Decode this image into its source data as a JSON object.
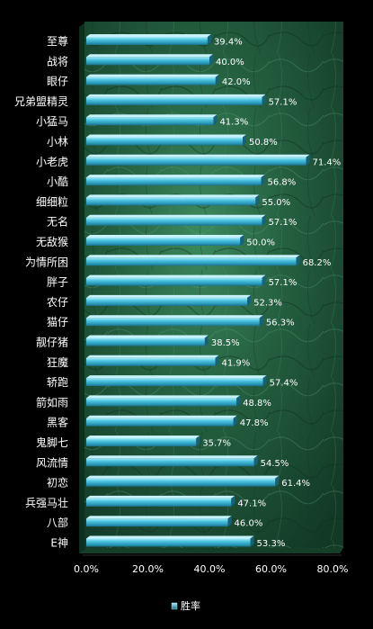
{
  "chart_data": {
    "type": "bar",
    "orientation": "horizontal",
    "categories": [
      "至尊",
      "战将",
      "眼仔",
      "兄弟盟精灵",
      "小猛马",
      "小林",
      "小老虎",
      "小酷",
      "细细粒",
      "无名",
      "无敌猴",
      "为情所困",
      "胖子",
      "农仔",
      "猫仔",
      "靓仔猪",
      "狂魔",
      "轿跑",
      "箭如雨",
      "黑客",
      "鬼脚七",
      "风流情",
      "初恋",
      "兵强马壮",
      "八部",
      "E神"
    ],
    "series": [
      {
        "name": "胜率",
        "values": [
          39.4,
          40.0,
          42.0,
          57.1,
          41.3,
          50.8,
          71.4,
          56.8,
          55.0,
          57.1,
          50.0,
          68.2,
          57.1,
          52.3,
          56.3,
          38.5,
          41.9,
          57.4,
          48.8,
          47.8,
          35.7,
          54.5,
          61.4,
          47.1,
          46.0,
          53.3
        ],
        "data_labels": [
          "39.4%",
          "40.0%",
          "42.0%",
          "57.1%",
          "41.3%",
          "50.8%",
          "71.4%",
          "56.8%",
          "55.0%",
          "57.1%",
          "50.0%",
          "68.2%",
          "57.1%",
          "52.3%",
          "56.3%",
          "38.5%",
          "41.9%",
          "57.4%",
          "48.8%",
          "47.8%",
          "35.7%",
          "54.5%",
          "61.4%",
          "47.1%",
          "46.0%",
          "53.3%"
        ]
      }
    ],
    "x_ticks": [
      "0.0%",
      "20.0%",
      "40.0%",
      "60.0%",
      "80.0%"
    ],
    "xlim": [
      0,
      80
    ],
    "legend_position": "bottom",
    "grid": false,
    "colors": {
      "bar": "#3cb8d6",
      "bar_light": "#8fe4f4",
      "bar_dark": "#1b6f88",
      "plot_bg": "#1f5a3a",
      "page_bg": "#000000",
      "text": "#ffffff"
    }
  }
}
